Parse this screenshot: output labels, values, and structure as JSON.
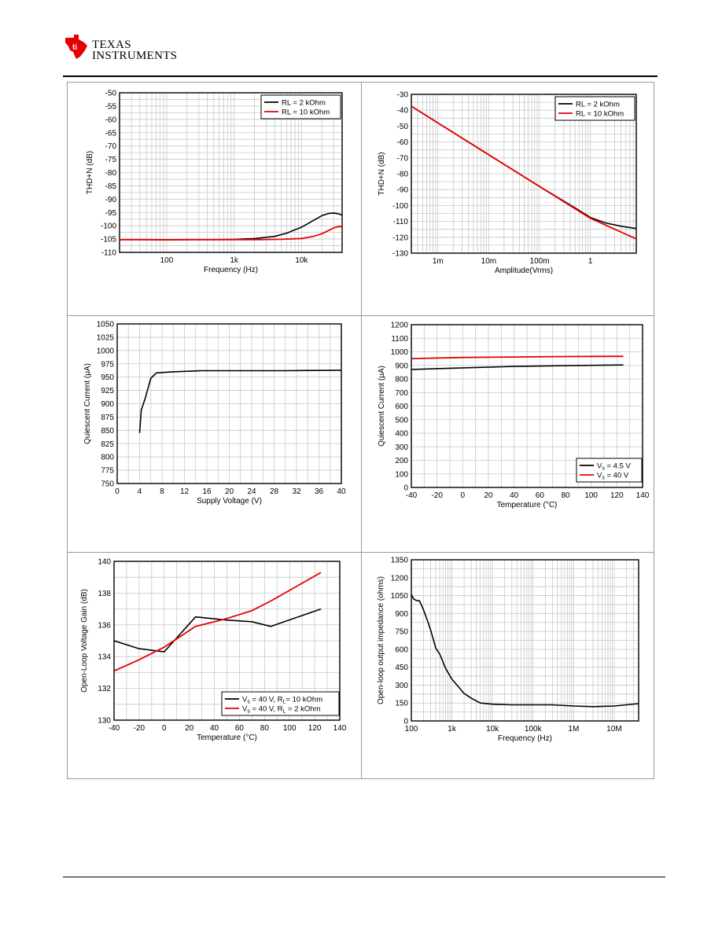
{
  "header": {
    "logo_line1": "Texas",
    "logo_line2": "Instruments"
  },
  "colors": {
    "black_series": "#000000",
    "red_series": "#e60000",
    "grid": "#c8c8c8",
    "frame_border": "#999999"
  },
  "chart_data": [
    {
      "type": "line",
      "xlabel": "Frequency (Hz)",
      "ylabel": "THD+N (dB)",
      "xscale": "log",
      "xlim": [
        20,
        40000
      ],
      "ylim": [
        -110,
        -50
      ],
      "xticks": [
        100,
        1000,
        10000
      ],
      "xtick_labels": [
        "100",
        "1k",
        "10k"
      ],
      "yticks": [
        -50,
        -55,
        -60,
        -65,
        -70,
        -75,
        -80,
        -85,
        -90,
        -95,
        -100,
        -105,
        -110
      ],
      "ytick_labels": [
        "-50",
        "-55",
        "-60",
        "-65",
        "-70",
        "-75",
        "-80",
        "-85",
        "-90",
        "-95",
        "-100",
        "-105",
        "-110"
      ],
      "legend": "top-right",
      "series": [
        {
          "name": "RL = 2 kOhm",
          "color": "#000000",
          "x": [
            20,
            50,
            100,
            200,
            500,
            1000,
            2000,
            4000,
            6000,
            8000,
            10000,
            15000,
            20000,
            25000,
            30000,
            35000,
            40000
          ],
          "y": [
            -105.2,
            -105.2,
            -105.3,
            -105.2,
            -105.2,
            -105.1,
            -104.8,
            -104,
            -102.8,
            -101.5,
            -100.5,
            -98,
            -96.2,
            -95.4,
            -95.2,
            -95.5,
            -96
          ]
        },
        {
          "name": "RL = 10 kOhm",
          "color": "#e60000",
          "x": [
            20,
            50,
            100,
            200,
            500,
            1000,
            2000,
            5000,
            10000,
            15000,
            20000,
            25000,
            30000,
            35000,
            40000
          ],
          "y": [
            -105.2,
            -105.2,
            -105.3,
            -105.2,
            -105.2,
            -105.2,
            -105.2,
            -105.1,
            -104.8,
            -104,
            -103,
            -101.8,
            -100.8,
            -100.3,
            -100.3
          ]
        }
      ]
    },
    {
      "type": "line",
      "xlabel": "Amplitude(Vrms)",
      "ylabel": "THD+N (dB)",
      "xscale": "log",
      "xlim": [
        0.0003,
        8
      ],
      "ylim": [
        -130,
        -30
      ],
      "xticks": [
        0.001,
        0.01,
        0.1,
        1
      ],
      "xtick_labels": [
        "1m",
        "10m",
        "100m",
        "1"
      ],
      "yticks": [
        -30,
        -40,
        -50,
        -60,
        -70,
        -80,
        -90,
        -100,
        -110,
        -120,
        -130
      ],
      "ytick_labels": [
        "-30",
        "-40",
        "-50",
        "-60",
        "-70",
        "-80",
        "-90",
        "-100",
        "-110",
        "-120",
        "-130"
      ],
      "legend": "top-right",
      "series": [
        {
          "name": "RL = 2 kOhm",
          "color": "#000000",
          "x": [
            0.0003,
            0.001,
            0.01,
            0.1,
            0.5,
            1,
            2,
            4,
            8
          ],
          "y": [
            -37.5,
            -48,
            -68,
            -88,
            -101.5,
            -107.5,
            -111,
            -113,
            -114.5
          ]
        },
        {
          "name": "RL = 10 kOhm",
          "color": "#e60000",
          "x": [
            0.0003,
            0.001,
            0.01,
            0.1,
            1,
            8
          ],
          "y": [
            -37.5,
            -48,
            -68,
            -88,
            -108,
            -121
          ]
        }
      ]
    },
    {
      "type": "line",
      "xlabel": "Supply Voltage (V)",
      "ylabel": "Quiescent Current (μA)",
      "xscale": "linear",
      "xlim": [
        0,
        40
      ],
      "ylim": [
        750,
        1050
      ],
      "xticks": [
        0,
        4,
        8,
        12,
        16,
        20,
        24,
        28,
        32,
        36,
        40
      ],
      "xtick_labels": [
        "0",
        "4",
        "8",
        "12",
        "16",
        "20",
        "24",
        "28",
        "32",
        "36",
        "40"
      ],
      "yticks": [
        750,
        775,
        800,
        825,
        850,
        875,
        900,
        925,
        950,
        975,
        1000,
        1025,
        1050
      ],
      "ytick_labels": [
        "750",
        "775",
        "800",
        "825",
        "850",
        "875",
        "900",
        "925",
        "950",
        "975",
        "1000",
        "1025",
        "1050"
      ],
      "series": [
        {
          "name": "",
          "color": "#000000",
          "x": [
            4,
            4.3,
            5,
            6,
            7,
            10,
            15,
            20,
            30,
            40
          ],
          "y": [
            845,
            888,
            910,
            948,
            958,
            960,
            962,
            962,
            962,
            963
          ]
        }
      ]
    },
    {
      "type": "line",
      "xlabel": "Temperature (°C)",
      "ylabel": "Quiescent Current (μA)",
      "xscale": "linear",
      "xlim": [
        -40,
        140
      ],
      "ylim": [
        0,
        1200
      ],
      "xticks": [
        -40,
        -20,
        0,
        20,
        40,
        60,
        80,
        100,
        120,
        140
      ],
      "xtick_labels": [
        "-40",
        "-20",
        "0",
        "20",
        "40",
        "60",
        "80",
        "100",
        "120",
        "140"
      ],
      "yticks": [
        0,
        100,
        200,
        300,
        400,
        500,
        600,
        700,
        800,
        900,
        1000,
        1100,
        1200
      ],
      "ytick_labels": [
        "0",
        "100",
        "200",
        "300",
        "400",
        "500",
        "600",
        "700",
        "800",
        "900",
        "1000",
        "1100",
        "1200"
      ],
      "legend": "bottom-right",
      "series": [
        {
          "name": "Vs = 4.5 V",
          "label_main": "V",
          "label_sub": "s",
          "label_rest": " = 4.5 V",
          "color": "#000000",
          "x": [
            -40,
            0,
            40,
            80,
            125
          ],
          "y": [
            870,
            882,
            892,
            898,
            903
          ]
        },
        {
          "name": "Vs = 40 V",
          "label_main": "V",
          "label_sub": "s",
          "label_rest": " = 40 V",
          "color": "#e60000",
          "x": [
            -40,
            0,
            40,
            80,
            125
          ],
          "y": [
            950,
            958,
            962,
            965,
            967
          ]
        }
      ]
    },
    {
      "type": "line",
      "xlabel": "Temperature (°C)",
      "ylabel": "Open-Loop Voltage Gain (dB)",
      "xscale": "linear",
      "xlim": [
        -40,
        140
      ],
      "ylim": [
        130,
        140
      ],
      "xticks": [
        -40,
        -20,
        0,
        20,
        40,
        60,
        80,
        100,
        120,
        140
      ],
      "xtick_labels": [
        "-40",
        "-20",
        "0",
        "20",
        "40",
        "60",
        "80",
        "100",
        "120",
        "140"
      ],
      "yticks": [
        130,
        132,
        134,
        136,
        138,
        140
      ],
      "ytick_labels": [
        "130",
        "132",
        "134",
        "136",
        "138",
        "140"
      ],
      "legend": "bottom-right",
      "series": [
        {
          "name": "Vs = 40 V, RL = 10 kOhm",
          "label_main": "V",
          "label_sub": "s",
          "label_rest": " = 40 V, R",
          "label_sub2": "L",
          "label_rest2": "= 10 kOhm",
          "color": "#000000",
          "x": [
            -40,
            -20,
            0,
            25,
            50,
            70,
            85,
            125
          ],
          "y": [
            135,
            134.5,
            134.3,
            136.5,
            136.3,
            136.2,
            135.9,
            137
          ]
        },
        {
          "name": "Vs = 40 V, RL = 2 kOhm",
          "label_main": "V",
          "label_sub": "s",
          "label_rest": " = 40 V, R",
          "label_sub2": "L",
          "label_rest2": " = 2 kOhm",
          "color": "#e60000",
          "x": [
            -40,
            -20,
            0,
            25,
            50,
            70,
            85,
            125
          ],
          "y": [
            133.1,
            133.8,
            134.6,
            135.9,
            136.4,
            136.9,
            137.5,
            139.3
          ]
        }
      ]
    },
    {
      "type": "line",
      "xlabel": "Frequency (Hz)",
      "ylabel": "Open-loop output impedance (ohms)",
      "xscale": "log",
      "xlim": [
        100,
        40000000
      ],
      "ylim": [
        0,
        1350
      ],
      "xticks": [
        100,
        1000,
        10000,
        100000,
        1000000,
        10000000
      ],
      "xtick_labels": [
        "100",
        "1k",
        "10k",
        "100k",
        "1M",
        "10M"
      ],
      "yticks": [
        0,
        150,
        300,
        450,
        600,
        750,
        900,
        1050,
        1200,
        1350
      ],
      "ytick_labels": [
        "0",
        "150",
        "300",
        "450",
        "600",
        "750",
        "900",
        "1050",
        "1200",
        "1350"
      ],
      "series": [
        {
          "name": "",
          "color": "#000000",
          "x": [
            100,
            115,
            130,
            160,
            200,
            250,
            300,
            400,
            500,
            700,
            1000,
            1500,
            2000,
            3000,
            5000,
            10000,
            30000,
            100000,
            300000,
            1000000,
            3000000,
            10000000,
            40000000
          ],
          "y": [
            1060,
            1020,
            1010,
            1005,
            930,
            840,
            760,
            610,
            560,
            440,
            350,
            280,
            230,
            190,
            150,
            140,
            135,
            135,
            135,
            125,
            120,
            125,
            145
          ]
        }
      ]
    }
  ]
}
